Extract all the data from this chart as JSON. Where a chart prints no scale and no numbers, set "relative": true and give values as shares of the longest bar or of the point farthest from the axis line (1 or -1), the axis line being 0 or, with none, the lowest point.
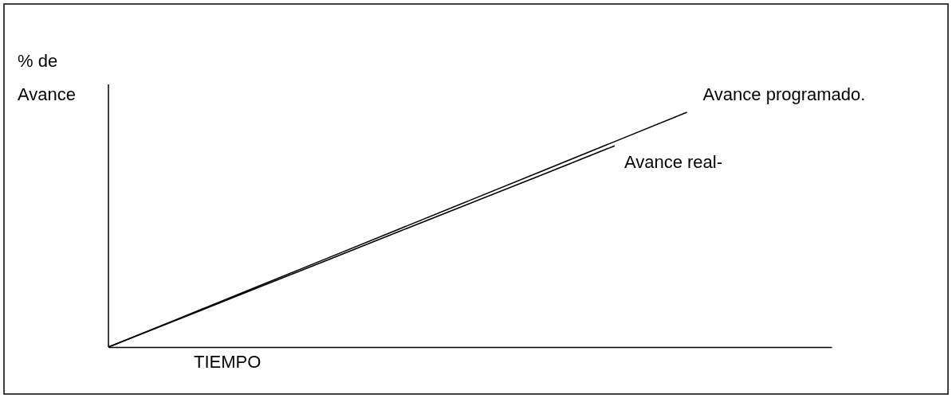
{
  "chart_data": {
    "type": "line",
    "relative": true,
    "ylabel": "% de Avance",
    "xlabel": "TIEMPO",
    "legend": false,
    "grid": false,
    "marker": "none",
    "line_style": "solid",
    "categories": [
      null,
      null,
      null,
      null,
      null,
      null,
      null,
      null,
      null,
      null,
      null
    ],
    "series": [
      {
        "name": "Avance programado.",
        "color": "#000000",
        "values": [
          0,
          0.125,
          0.25,
          0.375,
          0.5,
          0.625,
          0.75,
          0.875,
          1,
          null,
          null
        ]
      },
      {
        "name": "Avance real-",
        "color": "#000000",
        "values": [
          0,
          0.122,
          0.245,
          0.367,
          0.49,
          0.612,
          0.734,
          0.857,
          null,
          null,
          null
        ]
      }
    ]
  }
}
